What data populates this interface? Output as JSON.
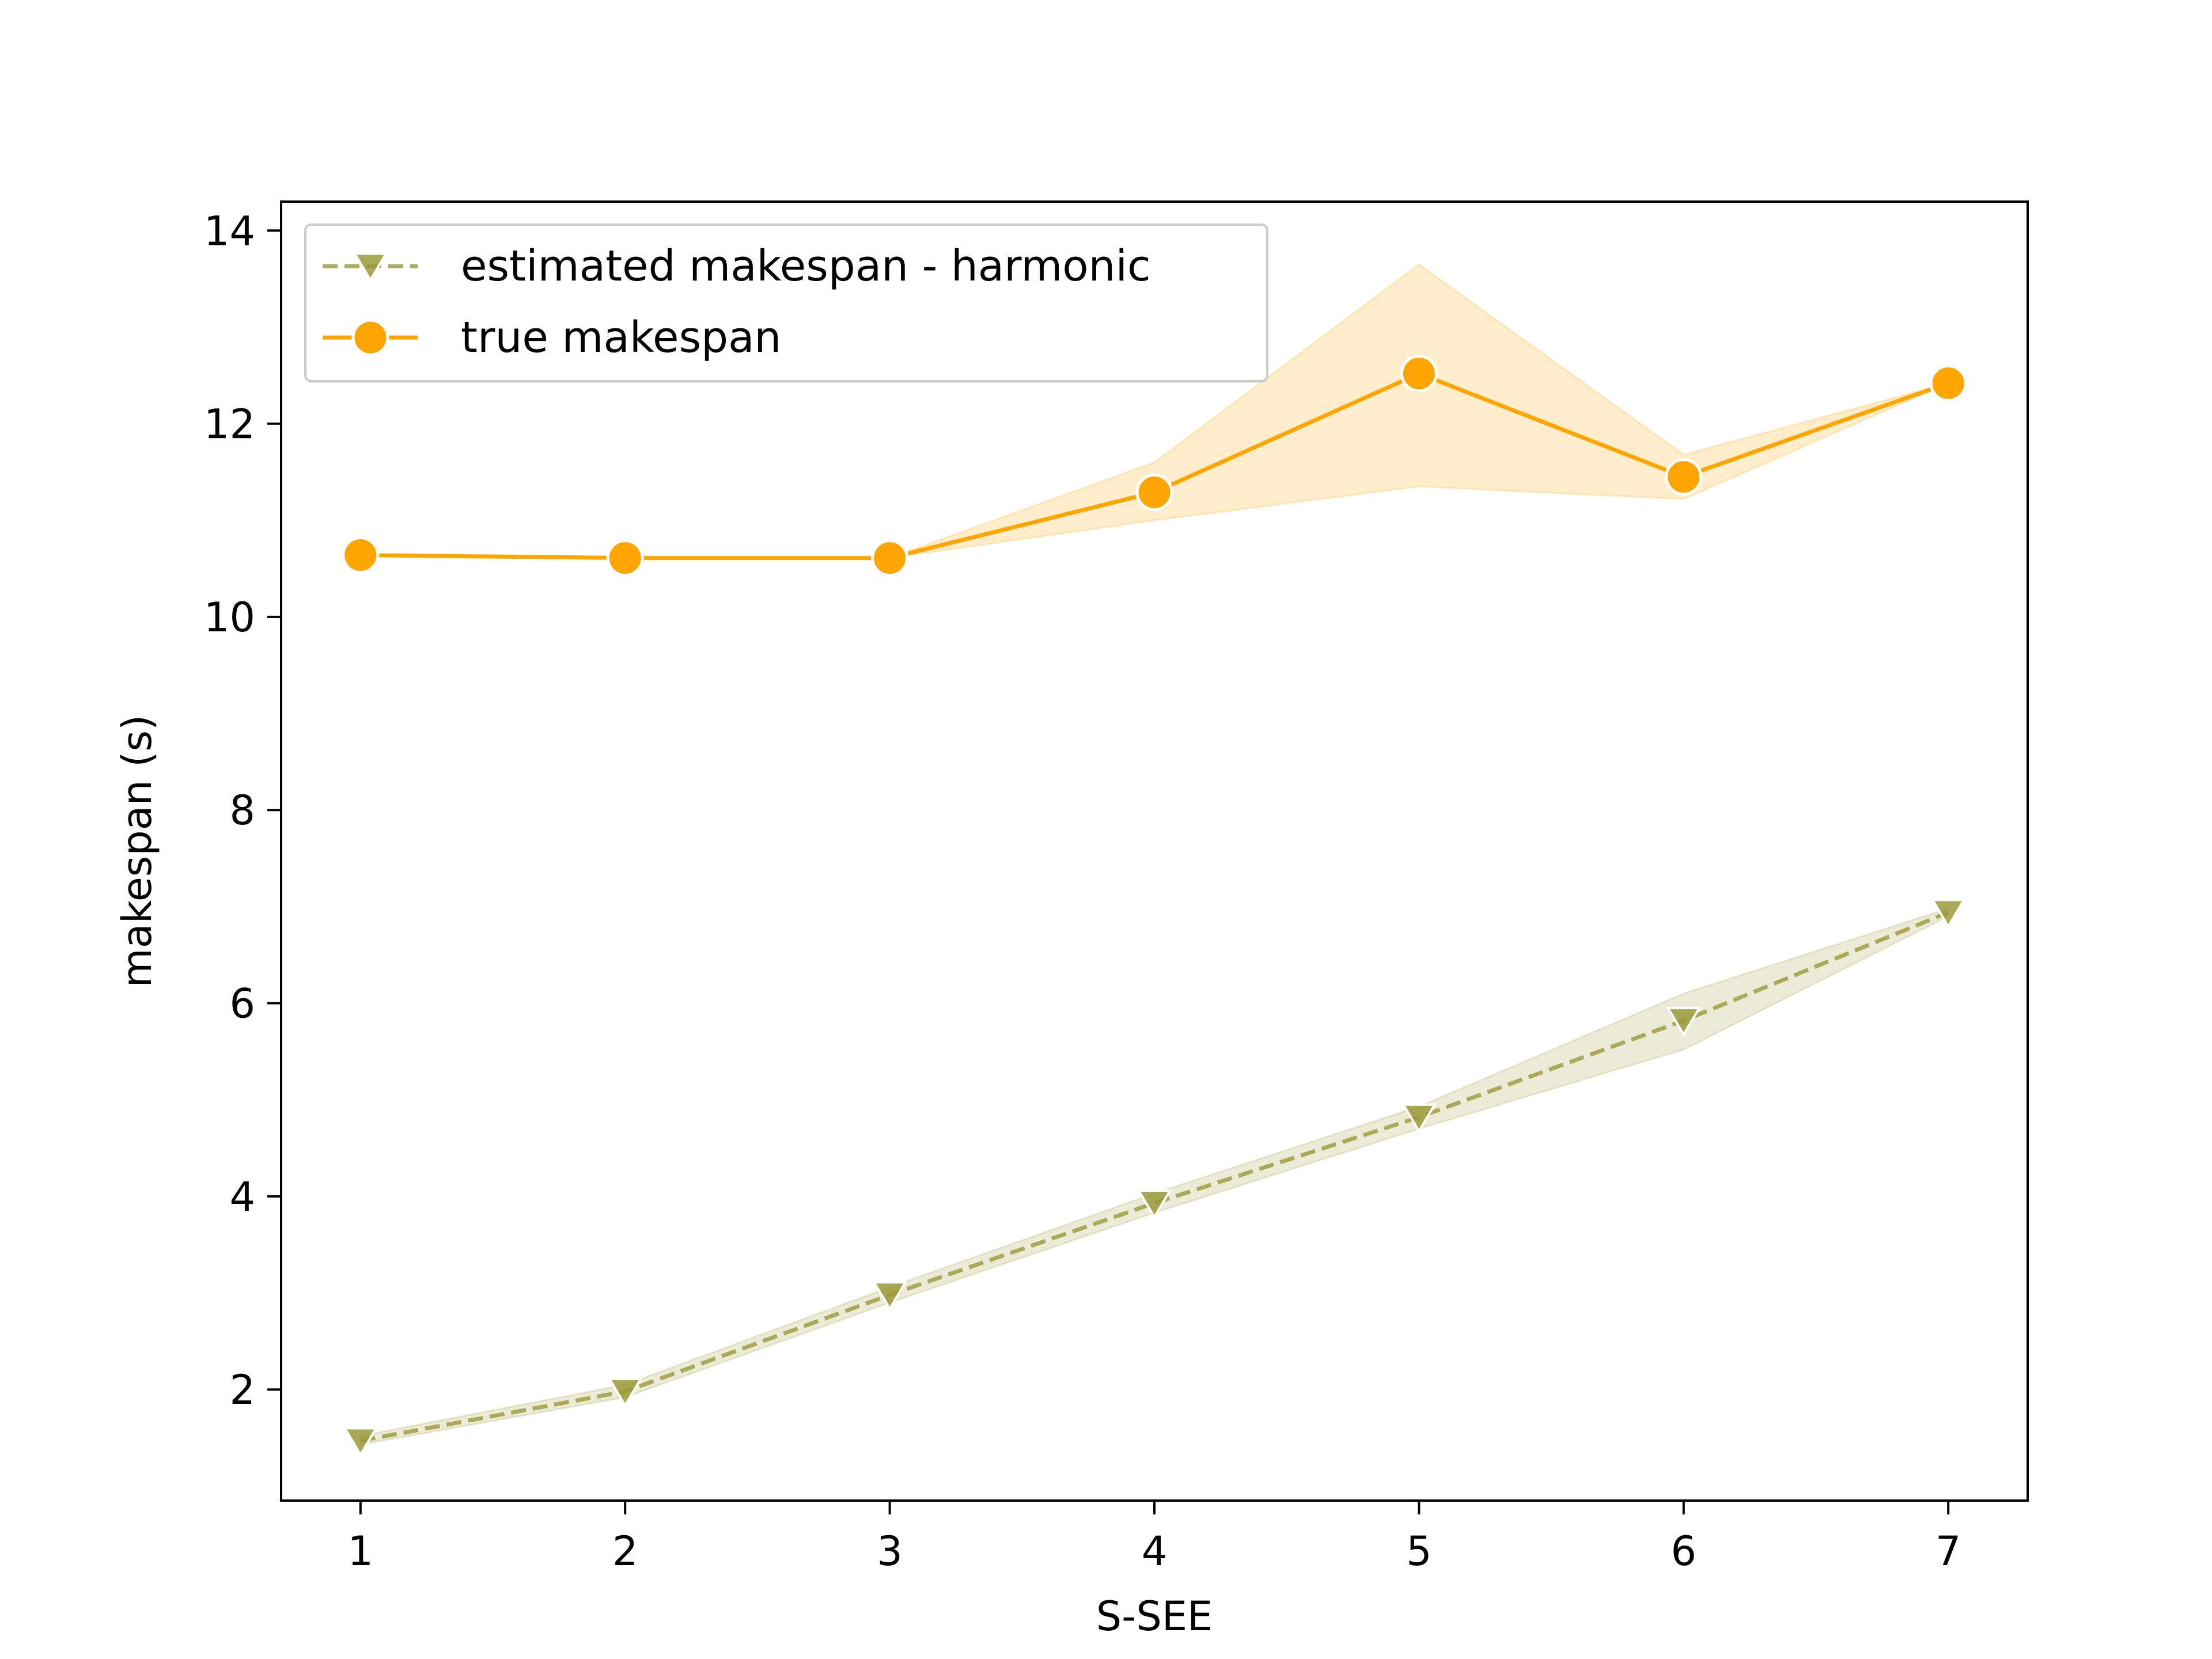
{
  "chart_data": {
    "type": "line",
    "xlabel": "S-SEE",
    "ylabel": "makespan (s)",
    "xlim": [
      0.7,
      7.3
    ],
    "ylim": [
      0.85,
      14.3
    ],
    "xticks": [
      1,
      2,
      3,
      4,
      5,
      6,
      7
    ],
    "yticks": [
      2,
      4,
      6,
      8,
      10,
      12,
      14
    ],
    "grid": false,
    "legend": "top-left",
    "series": [
      {
        "name": "estimated makespan - harmonic",
        "color": "#9a9a38",
        "linestyle": "dashed",
        "marker": "triangle-down",
        "x": [
          1,
          2,
          3,
          4,
          5,
          6,
          7
        ],
        "y": [
          1.47,
          1.98,
          2.98,
          3.93,
          4.82,
          5.82,
          6.94
        ],
        "band_lower": [
          1.43,
          1.92,
          2.9,
          3.83,
          4.7,
          5.52,
          6.9
        ],
        "band_upper": [
          1.52,
          2.05,
          3.06,
          4.03,
          4.93,
          6.1,
          6.98
        ]
      },
      {
        "name": "true makespan",
        "color": "#ffa500",
        "linestyle": "solid",
        "marker": "circle",
        "x": [
          1,
          2,
          3,
          4,
          5,
          6,
          7
        ],
        "y": [
          10.64,
          10.61,
          10.61,
          11.29,
          12.52,
          11.45,
          12.42
        ],
        "band_lower": [
          10.64,
          10.61,
          10.61,
          11.0,
          11.35,
          11.22,
          12.42
        ],
        "band_upper": [
          10.64,
          10.61,
          10.61,
          11.6,
          13.65,
          11.68,
          12.42
        ]
      }
    ]
  }
}
